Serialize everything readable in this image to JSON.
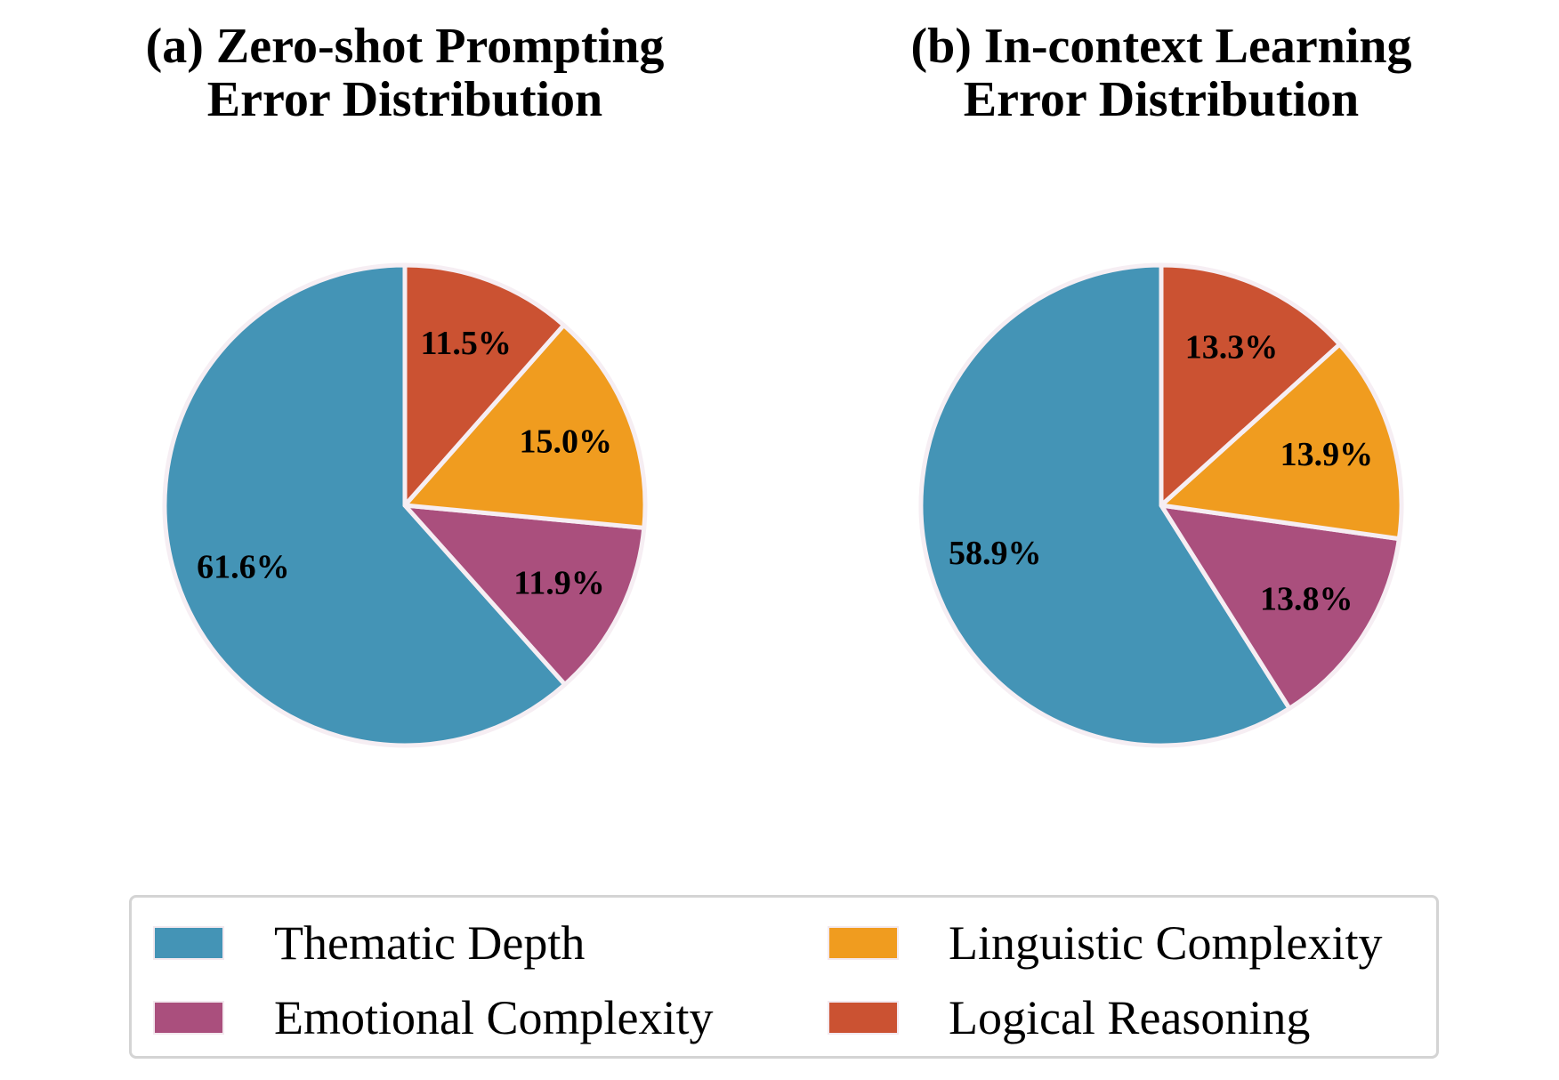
{
  "chart_data": [
    {
      "type": "pie",
      "title": [
        "(a) Zero-shot Prompting",
        "Error Distribution"
      ],
      "categories": [
        "Thematic Depth",
        "Emotional Complexity",
        "Linguistic Complexity",
        "Logical Reasoning"
      ],
      "values": [
        61.6,
        11.9,
        15.0,
        11.5
      ],
      "labels": [
        "61.6%",
        "11.9%",
        "15.0%",
        "11.5%"
      ]
    },
    {
      "type": "pie",
      "title": [
        "(b) In-context Learning",
        "Error Distribution"
      ],
      "categories": [
        "Thematic Depth",
        "Emotional Complexity",
        "Linguistic Complexity",
        "Logical Reasoning"
      ],
      "values": [
        58.9,
        13.8,
        13.9,
        13.3
      ],
      "labels": [
        "58.9%",
        "13.8%",
        "13.9%",
        "13.3%"
      ]
    }
  ],
  "legend": {
    "position": "bottom-center",
    "items": [
      {
        "label": "Thematic Depth",
        "color": "#4494b6"
      },
      {
        "label": "Linguistic Complexity",
        "color": "#f09c1f"
      },
      {
        "label": "Emotional Complexity",
        "color": "#aa4f7d"
      },
      {
        "label": "Logical Reasoning",
        "color": "#cb5232"
      }
    ]
  },
  "colors": {
    "Thematic Depth": "#4494b6",
    "Emotional Complexity": "#aa4f7d",
    "Linguistic Complexity": "#f09c1f",
    "Logical Reasoning": "#cb5232",
    "wedge_edge": "#f6eef3"
  }
}
